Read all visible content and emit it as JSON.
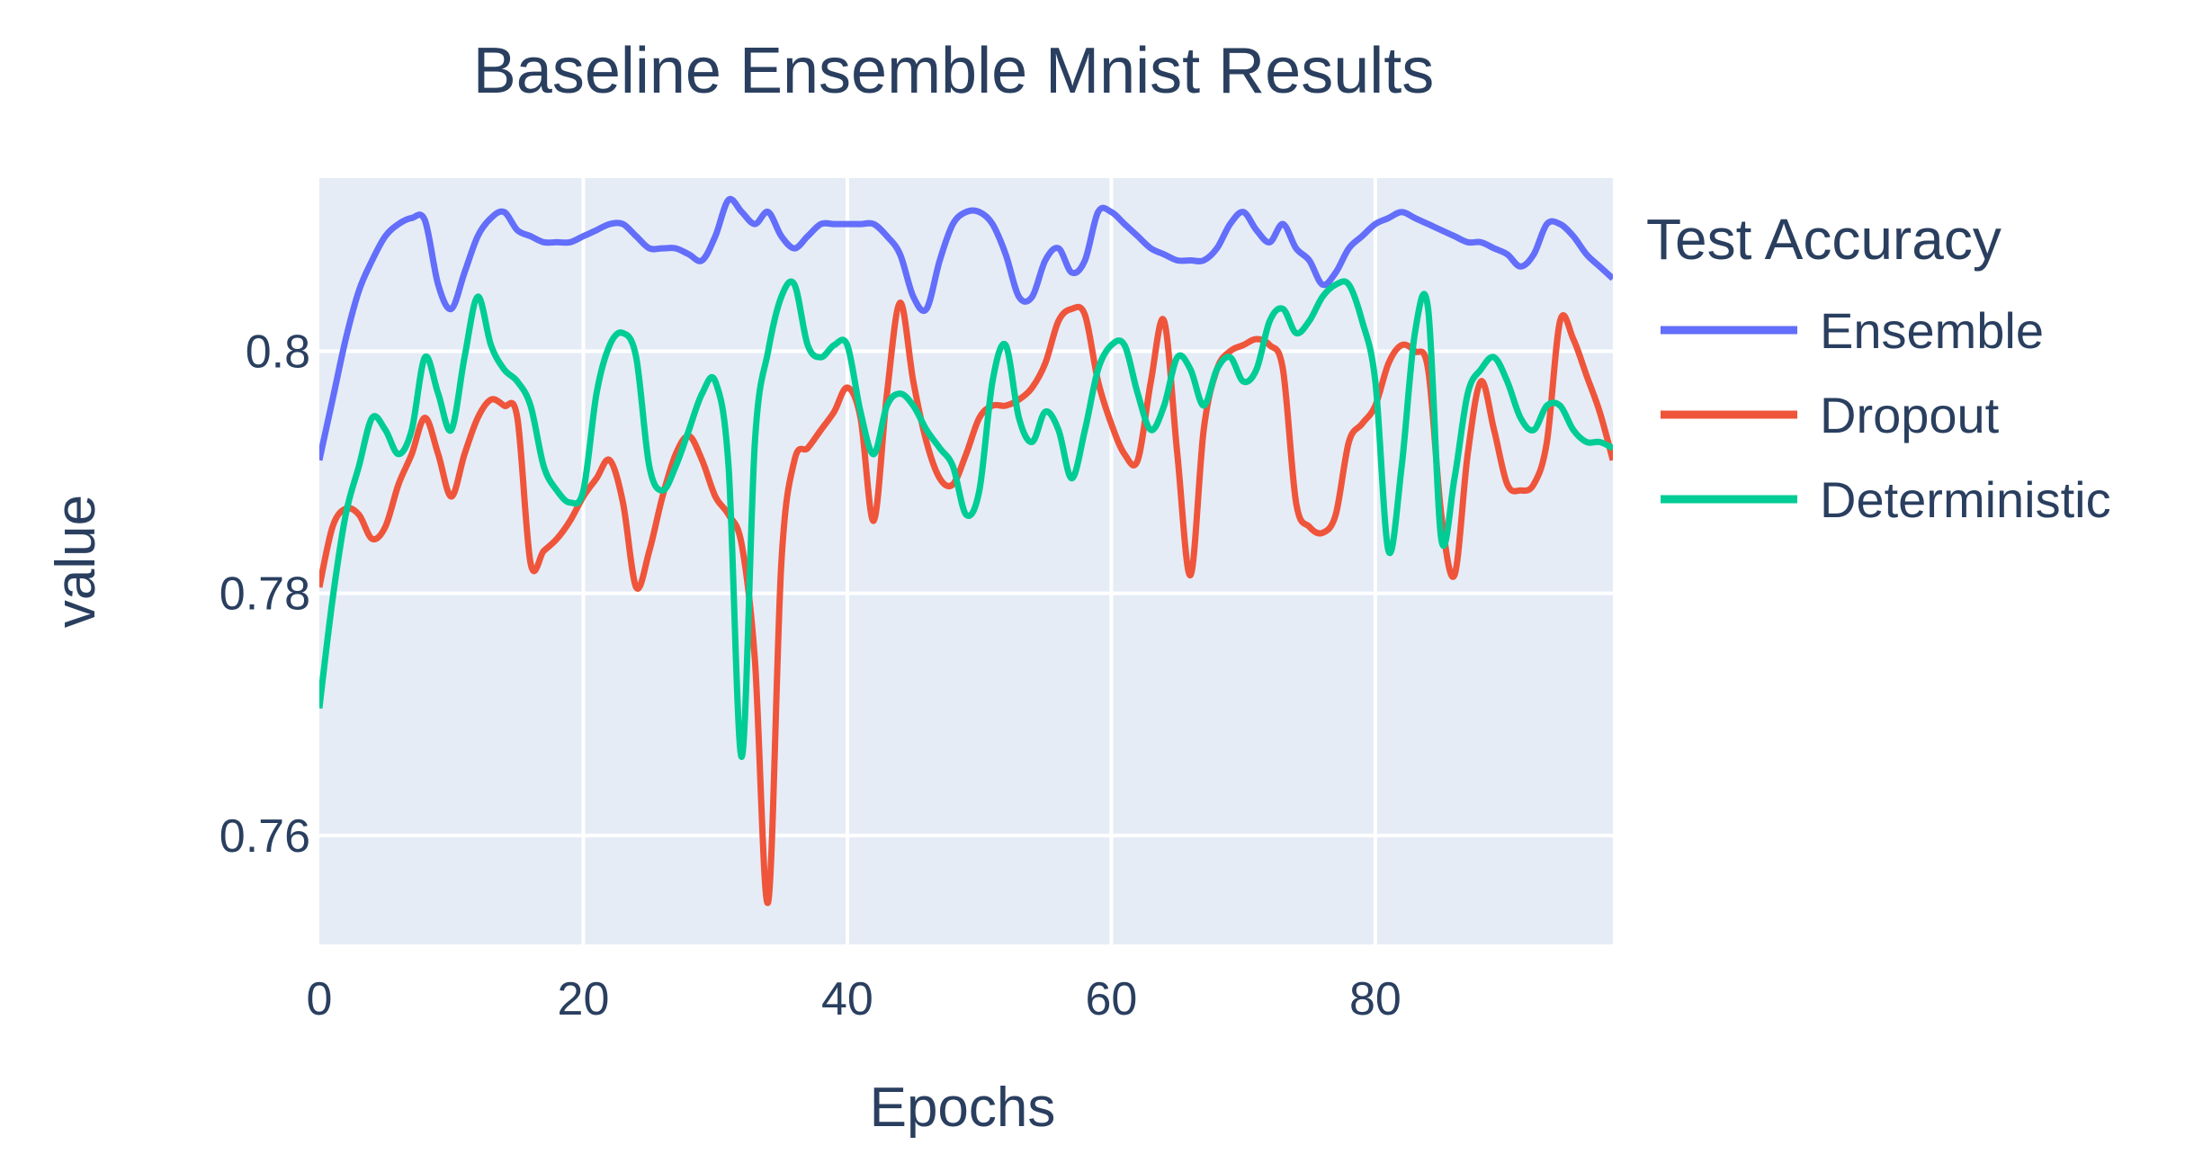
{
  "chart_data": {
    "type": "line",
    "title": "Baseline Ensemble Mnist Results",
    "xlabel": "Epochs",
    "ylabel": "value",
    "xlim": [
      0,
      98
    ],
    "ylim": [
      0.751,
      0.8143
    ],
    "xticks": [
      0,
      20,
      40,
      60,
      80
    ],
    "yticks": [
      0.76,
      0.78,
      0.8
    ],
    "grid": true,
    "legend": {
      "title": "Test Accuracy",
      "placement": "right"
    },
    "x": [
      0,
      1,
      2,
      3,
      4,
      5,
      6,
      7,
      8,
      9,
      10,
      11,
      12,
      13,
      14,
      15,
      16,
      17,
      18,
      19,
      20,
      21,
      22,
      23,
      24,
      25,
      26,
      27,
      28,
      29,
      30,
      31,
      32,
      33,
      34,
      35,
      36,
      37,
      38,
      39,
      40,
      41,
      42,
      43,
      44,
      45,
      46,
      47,
      48,
      49,
      50,
      51,
      52,
      53,
      54,
      55,
      56,
      57,
      58,
      59,
      60,
      61,
      62,
      63,
      64,
      65,
      66,
      67,
      68,
      69,
      70,
      71,
      72,
      73,
      74,
      75,
      76,
      77,
      78,
      79,
      80,
      81,
      82,
      83,
      84,
      85,
      86,
      87,
      88,
      89,
      90,
      91,
      92,
      93,
      94,
      95,
      96,
      97,
      98
    ],
    "series": [
      {
        "name": "Ensemble",
        "color": "#636efa",
        "values": [
          0.791,
          0.796,
          0.801,
          0.805,
          0.8075,
          0.8095,
          0.8105,
          0.811,
          0.8108,
          0.8055,
          0.8035,
          0.8065,
          0.8095,
          0.811,
          0.8115,
          0.81,
          0.8095,
          0.809,
          0.809,
          0.809,
          0.8095,
          0.81,
          0.8105,
          0.8105,
          0.8095,
          0.8085,
          0.8085,
          0.8085,
          0.808,
          0.8075,
          0.8095,
          0.8125,
          0.8115,
          0.8105,
          0.8115,
          0.8095,
          0.8085,
          0.8095,
          0.8105,
          0.8105,
          0.8105,
          0.8105,
          0.8105,
          0.8095,
          0.808,
          0.8045,
          0.8035,
          0.8075,
          0.8105,
          0.8115,
          0.8115,
          0.8105,
          0.808,
          0.8045,
          0.8045,
          0.8075,
          0.8085,
          0.8065,
          0.8075,
          0.8115,
          0.8115,
          0.8105,
          0.8095,
          0.8085,
          0.808,
          0.8075,
          0.8075,
          0.8075,
          0.8085,
          0.8105,
          0.8115,
          0.81,
          0.809,
          0.8105,
          0.8085,
          0.8075,
          0.8055,
          0.8065,
          0.8085,
          0.8095,
          0.8105,
          0.811,
          0.8115,
          0.811,
          0.8105,
          0.81,
          0.8095,
          0.809,
          0.809,
          0.8085,
          0.808,
          0.807,
          0.808,
          0.8105,
          0.8105,
          0.8095,
          0.808,
          0.807,
          0.806
        ]
      },
      {
        "name": "Dropout",
        "color": "#ef553b",
        "values": [
          0.7805,
          0.7855,
          0.787,
          0.7865,
          0.7845,
          0.7855,
          0.789,
          0.7915,
          0.7945,
          0.7915,
          0.788,
          0.7915,
          0.7945,
          0.796,
          0.7955,
          0.7945,
          0.7825,
          0.7835,
          0.7845,
          0.786,
          0.788,
          0.7895,
          0.791,
          0.7875,
          0.7805,
          0.7835,
          0.788,
          0.7915,
          0.793,
          0.791,
          0.788,
          0.7865,
          0.784,
          0.7745,
          0.7545,
          0.7825,
          0.791,
          0.792,
          0.7935,
          0.795,
          0.797,
          0.7945,
          0.786,
          0.7965,
          0.804,
          0.7975,
          0.7925,
          0.7895,
          0.789,
          0.7915,
          0.7945,
          0.7955,
          0.7955,
          0.796,
          0.797,
          0.799,
          0.8025,
          0.8035,
          0.803,
          0.7975,
          0.794,
          0.7915,
          0.791,
          0.7975,
          0.8025,
          0.7915,
          0.7815,
          0.7935,
          0.7985,
          0.8,
          0.8005,
          0.801,
          0.8005,
          0.7985,
          0.7875,
          0.7855,
          0.785,
          0.7865,
          0.7925,
          0.794,
          0.7955,
          0.799,
          0.8005,
          0.8,
          0.7985,
          0.7865,
          0.7815,
          0.7915,
          0.7975,
          0.7935,
          0.789,
          0.7885,
          0.789,
          0.7925,
          0.8025,
          0.801,
          0.798,
          0.795,
          0.791
        ]
      },
      {
        "name": "Deterministic",
        "color": "#00cc96",
        "values": [
          0.7705,
          0.7795,
          0.7865,
          0.7905,
          0.7945,
          0.7935,
          0.7915,
          0.7935,
          0.7995,
          0.7965,
          0.7935,
          0.7995,
          0.8045,
          0.8005,
          0.7985,
          0.7975,
          0.7955,
          0.7905,
          0.7885,
          0.7875,
          0.7885,
          0.7965,
          0.8005,
          0.8015,
          0.7995,
          0.7905,
          0.7885,
          0.7905,
          0.7935,
          0.7965,
          0.7975,
          0.7905,
          0.7665,
          0.7925,
          0.8,
          0.8045,
          0.8055,
          0.8005,
          0.7995,
          0.8005,
          0.8005,
          0.795,
          0.7915,
          0.7955,
          0.7965,
          0.7955,
          0.7935,
          0.792,
          0.7905,
          0.7865,
          0.7885,
          0.7975,
          0.8005,
          0.7945,
          0.7925,
          0.795,
          0.7935,
          0.7895,
          0.7935,
          0.7985,
          0.8005,
          0.8005,
          0.7965,
          0.7935,
          0.7955,
          0.7995,
          0.7985,
          0.7955,
          0.7985,
          0.7995,
          0.7975,
          0.7985,
          0.8025,
          0.8035,
          0.8015,
          0.8025,
          0.8045,
          0.8055,
          0.8055,
          0.8025,
          0.7975,
          0.7835,
          0.7905,
          0.8015,
          0.8035,
          0.7845,
          0.7895,
          0.7965,
          0.7985,
          0.7995,
          0.7975,
          0.7945,
          0.7935,
          0.7955,
          0.7955,
          0.7935,
          0.7925,
          0.7925,
          0.792
        ]
      }
    ]
  }
}
